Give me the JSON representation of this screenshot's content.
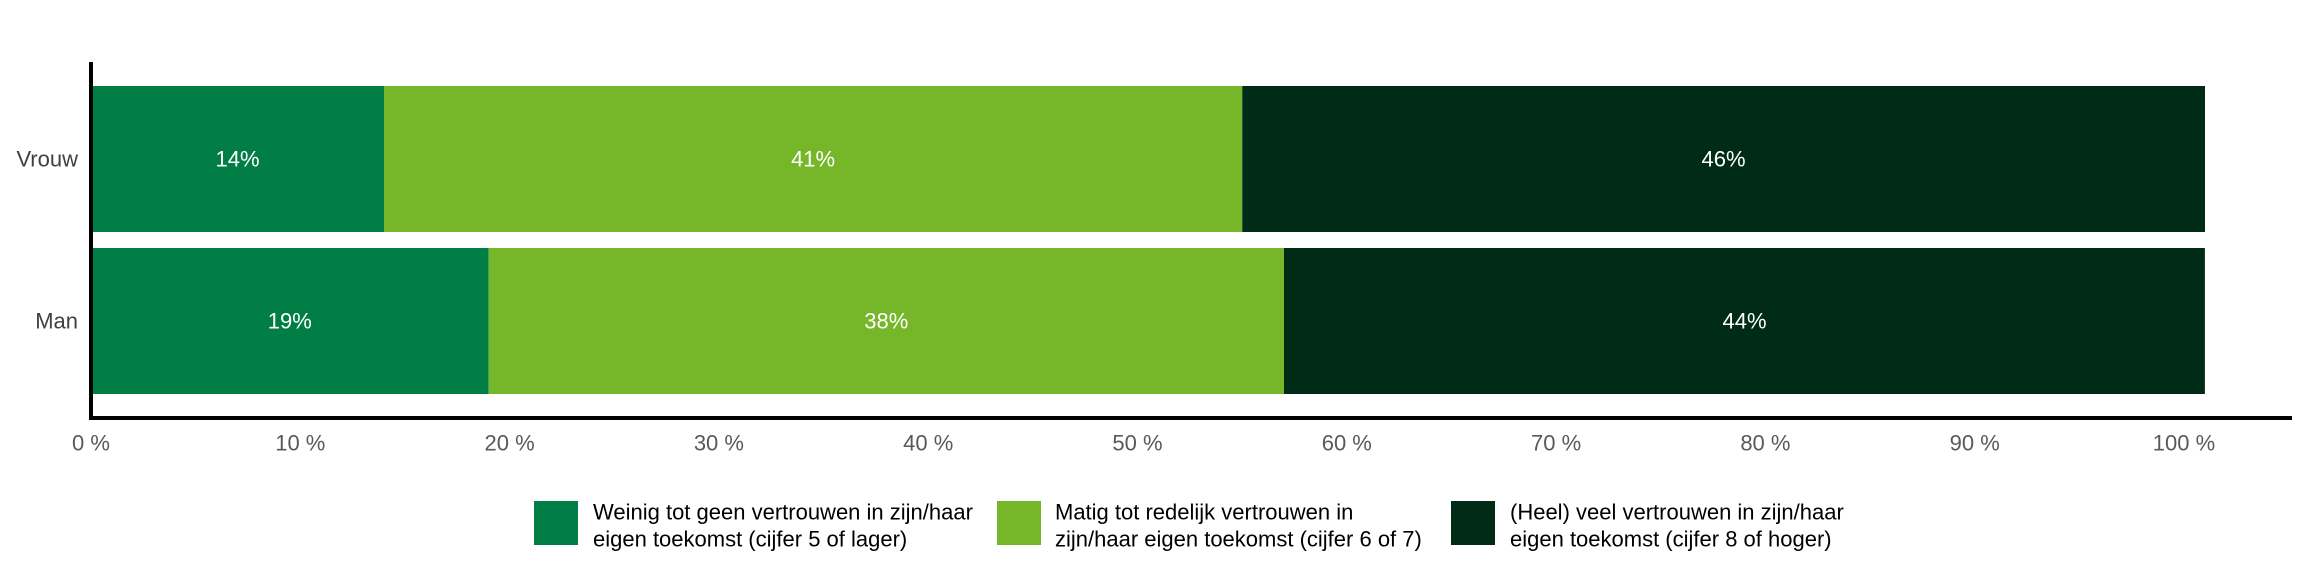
{
  "colors": {
    "background": "#ffffff",
    "axis": "#000000",
    "tick_label": "#595959",
    "category_label": "#404040",
    "data_label": "#ffffff",
    "legend_text": "#000000"
  },
  "chart_data": {
    "type": "bar",
    "orientation": "horizontal",
    "stacked": true,
    "categories": [
      "Vrouw",
      "Man"
    ],
    "series": [
      {
        "name_lines": [
          "Weinig tot geen vertrouwen in zijn/haar",
          "eigen toekomst (cijfer 5 of lager)"
        ],
        "color": "#007e45",
        "values": [
          14,
          19
        ],
        "labels": [
          "14%",
          "19%"
        ]
      },
      {
        "name_lines": [
          "Matig tot redelijk vertrouwen in",
          "zijn/haar eigen toekomst (cijfer 6 of 7)"
        ],
        "color": "#76b72a",
        "values": [
          41,
          38
        ],
        "labels": [
          "41%",
          "38%"
        ]
      },
      {
        "name_lines": [
          "(Heel) veel vertrouwen in zijn/haar",
          "eigen toekomst (cijfer 8 of hoger)"
        ],
        "color": "#002c17",
        "values": [
          46,
          44
        ],
        "labels": [
          "46%",
          "44%"
        ]
      }
    ],
    "xlim": [
      0,
      100
    ],
    "x_ticks": [
      "0 %",
      "10 %",
      "20 %",
      "30 %",
      "40 %",
      "50 %",
      "60 %",
      "70 %",
      "80 %",
      "90 %",
      "100 %"
    ],
    "grid": false,
    "legend_position": "bottom"
  }
}
